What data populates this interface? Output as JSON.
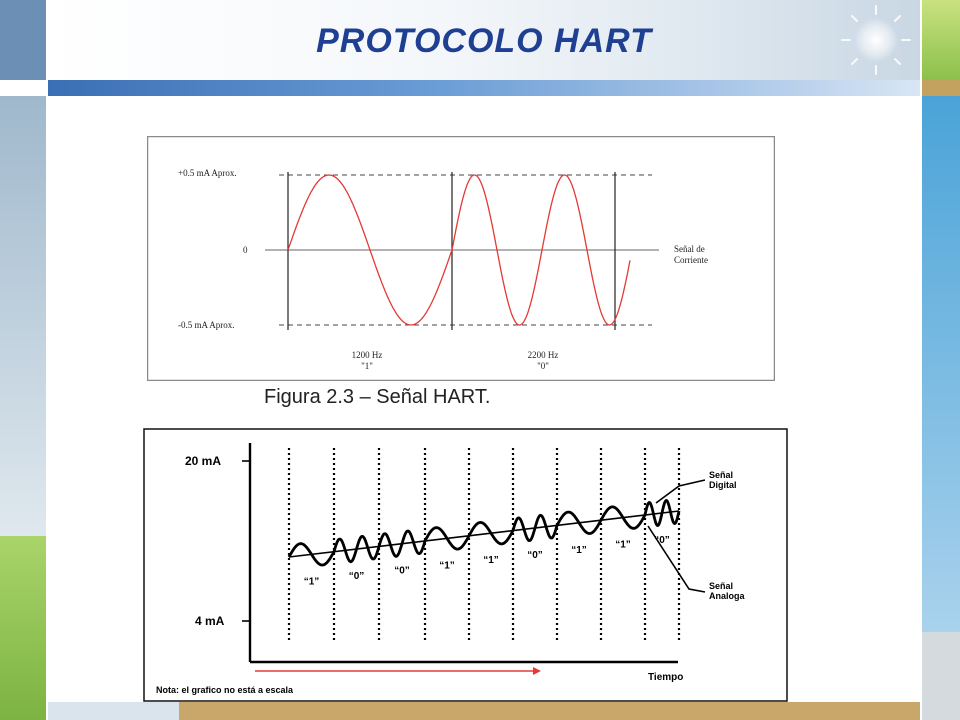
{
  "slide": {
    "title": "PROTOCOLO HART",
    "colors": {
      "title": "#1f3f93",
      "accent_blue": "#3a6fb5",
      "accent_green": "#8cc04b",
      "accent_tan": "#c2a25e"
    }
  },
  "figure1": {
    "caption": "Figura 2.3 – Señal HART.",
    "label_top": "+0.5 mA Aprox.",
    "label_zero": "0",
    "label_bottom": "-0.5 mA Aprox.",
    "signal_label_line1": "Señal de",
    "signal_label_line2": "Corriente",
    "freq1_label": "1200 Hz",
    "freq1_bit": "\"1\"",
    "freq2_label": "2200 Hz",
    "freq2_bit": "\"0\"",
    "wave_color": "#e53935"
  },
  "figure2": {
    "y_top_label": "20 mA",
    "y_bottom_label": "4 mA",
    "x_label": "Tiempo",
    "note": "Nota: el grafico no está a escala",
    "digital_label_line1": "Señal",
    "digital_label_line2": "Digital",
    "analog_label_line1": "Señal",
    "analog_label_line2": "Analoga",
    "bits": [
      "“1”",
      "“0”",
      "“0”",
      "“1”",
      "“1”",
      "“0”",
      "“1”",
      "“1”",
      "“0”"
    ],
    "arrow_color": "#e53935"
  }
}
